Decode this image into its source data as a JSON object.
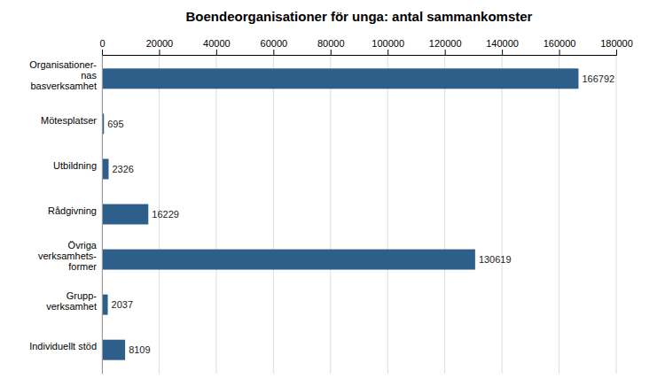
{
  "chart_data": {
    "type": "bar",
    "orientation": "horizontal",
    "title": "Boendeorganisationer för unga: antal sammankomster",
    "categories": [
      "Individuellt stöd",
      "Grupp-\nverksamhet",
      "Övriga\nverksamhets-\nformer",
      "Rådgivning",
      "Utbildning",
      "Mötesplatser",
      "Organisationer-\nnas\nbasverksamhet"
    ],
    "values": [
      8109,
      2037,
      130619,
      16229,
      2326,
      695,
      166792
    ],
    "color": "#2e5f8a",
    "xlim": [
      0,
      180000
    ],
    "xticks": [
      0,
      20000,
      40000,
      60000,
      80000,
      100000,
      120000,
      140000,
      160000,
      180000
    ],
    "grid": true,
    "data_labels": true
  }
}
